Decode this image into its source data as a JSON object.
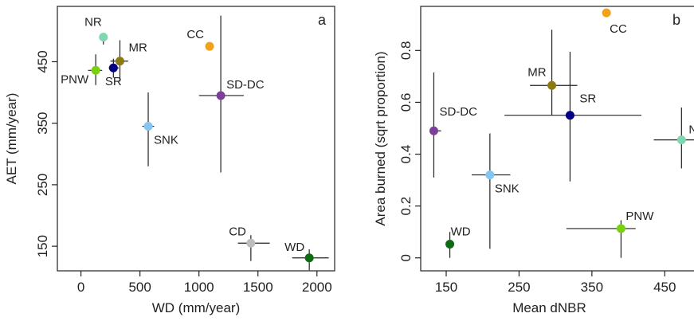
{
  "chart_data": [
    {
      "type": "scatter",
      "panel_label": "a",
      "xlabel": "WD (mm/year)",
      "ylabel": "AET (mm/year)",
      "xlim": [
        -200,
        2150
      ],
      "ylim": [
        110,
        540
      ],
      "xticks": [
        0,
        500,
        1000,
        1500,
        2000
      ],
      "yticks": [
        150,
        250,
        350,
        450
      ],
      "points": [
        {
          "label": "NR",
          "x": 190,
          "y": 490,
          "xerr": [
            170,
            220
          ],
          "yerr": [
            478,
            492
          ],
          "color": "#7fd6b0"
        },
        {
          "label": "MR",
          "x": 330,
          "y": 451,
          "xerr": [
            250,
            400
          ],
          "yerr": [
            418,
            485
          ],
          "color": "#8b7a12"
        },
        {
          "label": "SR",
          "x": 275,
          "y": 440,
          "xerr": [
            235,
            320
          ],
          "yerr": [
            424,
            455
          ],
          "color": "#000080"
        },
        {
          "label": "PNW",
          "x": 125,
          "y": 436,
          "xerr": [
            60,
            180
          ],
          "yerr": [
            412,
            462
          ],
          "color": "#77d10f"
        },
        {
          "label": "CC",
          "x": 1090,
          "y": 475,
          "xerr": [
            1080,
            1100
          ],
          "yerr": [
            470,
            480
          ],
          "color": "#f4a11a"
        },
        {
          "label": "SD-DC",
          "x": 1185,
          "y": 395,
          "xerr": [
            1000,
            1380
          ],
          "yerr": [
            270,
            525
          ],
          "color": "#7b3f99"
        },
        {
          "label": "SNK",
          "x": 570,
          "y": 345,
          "xerr": [
            520,
            620
          ],
          "yerr": [
            280,
            400
          ],
          "color": "#82c6f1"
        },
        {
          "label": "CD",
          "x": 1440,
          "y": 155,
          "xerr": [
            1330,
            1600
          ],
          "yerr": [
            126,
            168
          ],
          "color": "#bdbdbd"
        },
        {
          "label": "WD",
          "x": 1935,
          "y": 131,
          "xerr": [
            1790,
            2100
          ],
          "yerr": [
            111,
            145
          ],
          "color": "#0d6b12"
        }
      ]
    },
    {
      "type": "scatter",
      "panel_label": "b",
      "xlabel": "Mean dNBR",
      "ylabel": "Area burned (sqrt proportion)",
      "xlim": [
        115,
        500
      ],
      "ylim": [
        -0.05,
        0.97
      ],
      "xticks": [
        150,
        250,
        350,
        450
      ],
      "yticks": [
        0,
        0.2,
        0.4,
        0.6,
        0.8
      ],
      "points": [
        {
          "label": "CC",
          "x": 370,
          "y": 0.945,
          "xerr": [
            369,
            371
          ],
          "yerr": [
            0.94,
            0.95
          ],
          "color": "#f4a11a"
        },
        {
          "label": "MR",
          "x": 295,
          "y": 0.665,
          "xerr": [
            265,
            330
          ],
          "yerr": [
            0.55,
            0.88
          ],
          "color": "#8b7a12"
        },
        {
          "label": "SR",
          "x": 320,
          "y": 0.55,
          "xerr": [
            230,
            418
          ],
          "yerr": [
            0.295,
            0.795
          ],
          "color": "#000080"
        },
        {
          "label": "SD-DC",
          "x": 133,
          "y": 0.49,
          "xerr": [
            131,
            143
          ],
          "yerr": [
            0.31,
            0.715
          ],
          "color": "#7b3f99"
        },
        {
          "label": "NR",
          "x": 473,
          "y": 0.455,
          "xerr": [
            435,
            500
          ],
          "yerr": [
            0.345,
            0.58
          ],
          "color": "#7fd6b0"
        },
        {
          "label": "SNK",
          "x": 210,
          "y": 0.32,
          "xerr": [
            185,
            238
          ],
          "yerr": [
            0.035,
            0.48
          ],
          "color": "#82c6f1"
        },
        {
          "label": "PNW",
          "x": 390,
          "y": 0.113,
          "xerr": [
            315,
            410
          ],
          "yerr": [
            0.0,
            0.145
          ],
          "color": "#77d10f"
        },
        {
          "label": "WD",
          "x": 155,
          "y": 0.053,
          "xerr": [
            150,
            160
          ],
          "yerr": [
            0.0,
            0.1
          ],
          "color": "#0d6b12"
        }
      ]
    }
  ]
}
